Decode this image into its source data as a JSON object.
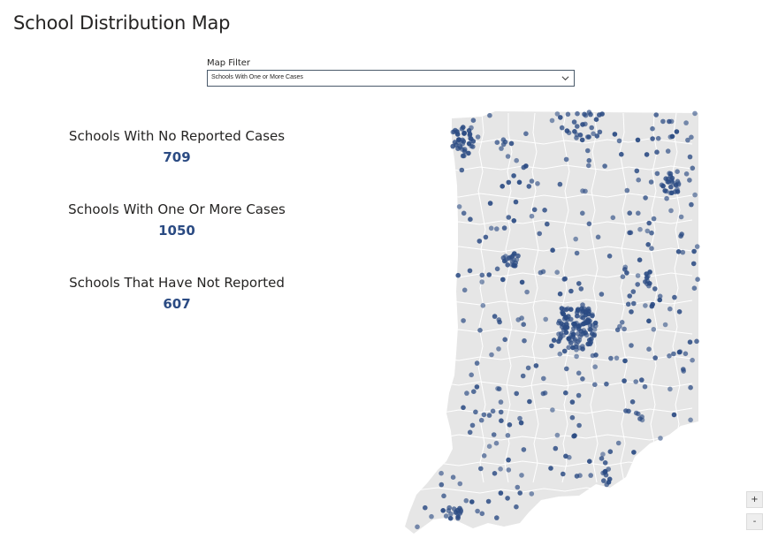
{
  "page": {
    "title": "School Distribution Map"
  },
  "filter": {
    "label": "Map Filter",
    "selected": "Schools With One or More Cases"
  },
  "stats": [
    {
      "label": "Schools With No Reported Cases",
      "value": "709"
    },
    {
      "label": "Schools With One Or More Cases",
      "value": "1050"
    },
    {
      "label": "Schools That Have Not Reported",
      "value": "607"
    }
  ],
  "map": {
    "region_fill": "#e6e6e6",
    "county_border": "#ffffff",
    "dot_color": "#2b4b83"
  },
  "zoom": {
    "in_label": "+",
    "out_label": "-"
  }
}
